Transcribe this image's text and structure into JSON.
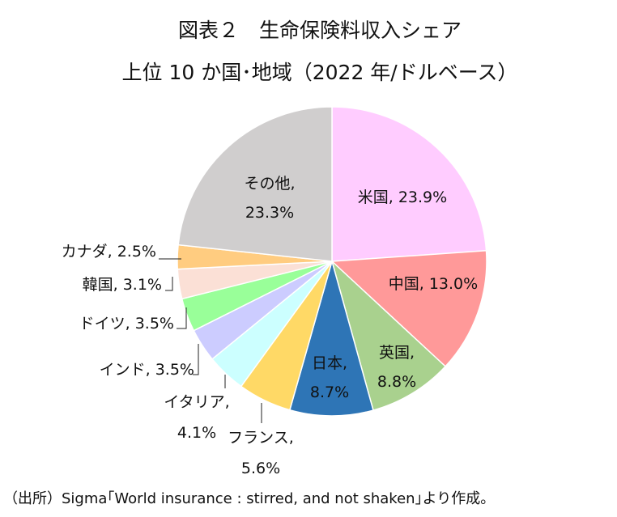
{
  "chart_data": {
    "type": "pie",
    "title": "図表２　生命保険料収入シェア",
    "subtitle": "上位 10 か国･地域（2022 年/ドルベース）",
    "unit": "%",
    "slices": [
      {
        "name": "米国",
        "value": 23.9,
        "value_label": "23.9%",
        "color": "#ffccff"
      },
      {
        "name": "中国",
        "value": 13.0,
        "value_label": "13.0%",
        "color": "#ff9999"
      },
      {
        "name": "英国",
        "value": 8.8,
        "value_label": "8.8%",
        "color": "#a9d18e"
      },
      {
        "name": "日本",
        "value": 8.7,
        "value_label": "8.7%",
        "color": "#2e75b6"
      },
      {
        "name": "フランス",
        "value": 5.6,
        "value_label": "5.6%",
        "color": "#ffd966"
      },
      {
        "name": "イタリア",
        "value": 4.1,
        "value_label": "4.1%",
        "color": "#ccffff"
      },
      {
        "name": "インド",
        "value": 3.5,
        "value_label": "3.5%",
        "color": "#ccccff"
      },
      {
        "name": "ドイツ",
        "value": 3.5,
        "value_label": "3.5%",
        "color": "#99ff99"
      },
      {
        "name": "韓国",
        "value": 3.1,
        "value_label": "3.1%",
        "color": "#fbe0d6"
      },
      {
        "name": "カナダ",
        "value": 2.5,
        "value_label": "2.5%",
        "color": "#ffcc80"
      },
      {
        "name": "その他",
        "value": 23.3,
        "value_label": "23.3%",
        "color": "#d0cece"
      }
    ]
  },
  "source": "（出所）Sigma｢World insurance : stirred, and not shaken｣より作成。"
}
